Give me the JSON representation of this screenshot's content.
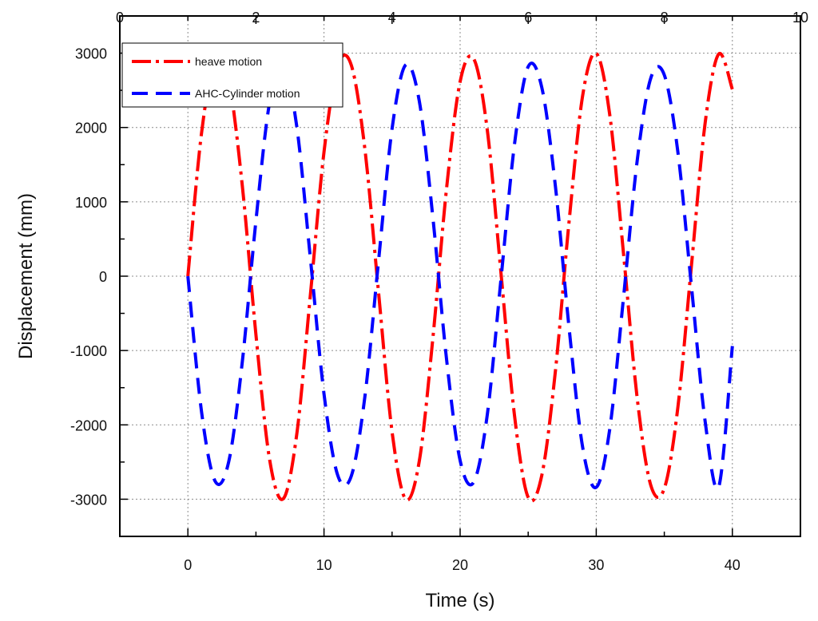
{
  "chart_data": {
    "type": "line",
    "xlabel": "Time (s)",
    "ylabel": "Displacement (mm)",
    "xlim": [
      -5,
      45
    ],
    "ylim": [
      -3500,
      3500
    ],
    "x_ticks": [
      0,
      10,
      20,
      30,
      40
    ],
    "y_ticks": [
      -3000,
      -2000,
      -1000,
      0,
      1000,
      2000,
      3000
    ],
    "top_axis": {
      "range": [
        0,
        10
      ],
      "ticks": [
        0,
        2,
        4,
        6,
        8,
        10
      ]
    },
    "grid": true,
    "legend_position": "top-left",
    "series": [
      {
        "name": "heave motion",
        "color": "#ff0000",
        "style": "dash-dot",
        "x": [
          0,
          1,
          2,
          3,
          4,
          5,
          6,
          7,
          8,
          9,
          10,
          11,
          12,
          13,
          14,
          15,
          16,
          17,
          18,
          19,
          20,
          21,
          22,
          23,
          24,
          25,
          26,
          27,
          28,
          29,
          30,
          31,
          32,
          33,
          34,
          35,
          36,
          37,
          38,
          39,
          40
        ],
        "y": [
          0,
          1921,
          2910,
          2635,
          1213,
          -788,
          -2462,
          -2995,
          -2124,
          -251,
          1671,
          2823,
          2841,
          1715,
          -203,
          -2094,
          -3000,
          -2487,
          -830,
          1174,
          2617,
          2924,
          1960,
          45,
          -1882,
          -2975,
          -2679,
          -1276,
          726,
          2427,
          2998,
          2161,
          310,
          -1627,
          -2808,
          -2856,
          -1759,
          156,
          2061,
          2989,
          2514
        ]
      },
      {
        "name": "AHC-Cylinder motion",
        "color": "#0000ff",
        "style": "dash",
        "x": [
          0,
          1,
          2,
          3,
          4,
          5,
          6,
          7,
          8,
          9,
          10,
          11,
          12,
          13,
          14,
          15,
          16,
          17,
          18,
          19,
          20,
          21,
          22,
          23,
          24,
          25,
          26,
          27,
          28,
          29,
          30,
          31,
          32,
          33,
          34,
          35,
          36,
          37,
          38,
          39,
          40
        ],
        "y": [
          0,
          -1820,
          -2757,
          -2496,
          -1149,
          747,
          2333,
          2837,
          2012,
          238,
          -1583,
          -2674,
          -2691,
          -1625,
          192,
          1984,
          2842,
          2356,
          786,
          -1112,
          -2479,
          -2770,
          -1857,
          -43,
          1783,
          2818,
          2538,
          1209,
          -688,
          -2299,
          -2840,
          -2047,
          -294,
          1541,
          2660,
          2706,
          1666,
          -148,
          -1953,
          -2832,
          -940
        ]
      }
    ]
  }
}
